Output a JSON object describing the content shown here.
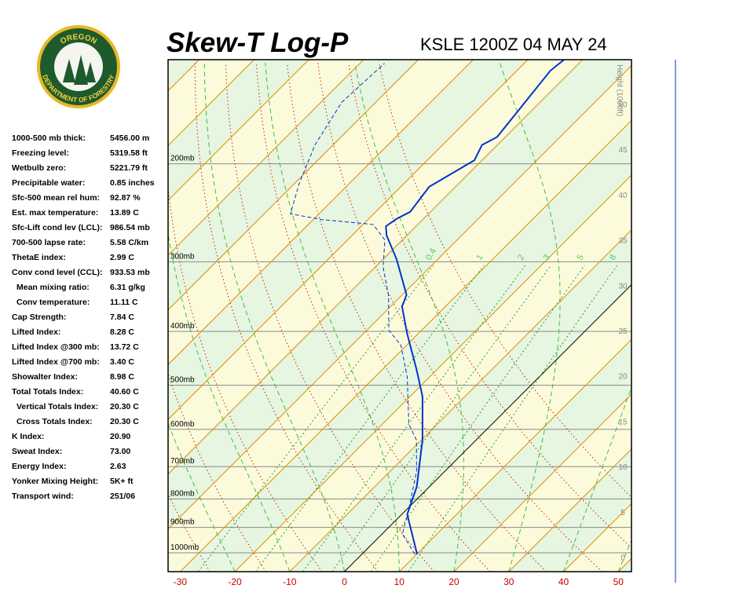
{
  "logo": {
    "top": "OREGON",
    "bottom": "DEPARTMENT OF FORESTRY"
  },
  "indices": {
    "rows": [
      [
        "1000-500 mb thick:",
        "5456.00 m"
      ],
      [
        "Freezing level:",
        "5319.58 ft"
      ],
      [
        "Wetbulb zero:",
        "5221.79 ft"
      ],
      [
        "Precipitable water:",
        "0.85 inches"
      ],
      [
        "Sfc-500 mean rel hum:",
        "92.87 %"
      ],
      [
        "Est. max temperature:",
        "13.89 C"
      ],
      [
        "Sfc-Lift cond lev (LCL):",
        "986.54 mb"
      ],
      [
        "700-500 lapse rate:",
        "5.58 C/km"
      ],
      [
        "ThetaE index:",
        "2.99 C"
      ],
      [
        "Conv cond level (CCL):",
        "933.53 mb"
      ],
      [
        "Mean mixing ratio:",
        "6.31 g/kg"
      ],
      [
        "Conv temperature:",
        "11.11 C"
      ],
      [
        "Cap Strength:",
        "7.84 C"
      ],
      [
        "Lifted Index:",
        "8.28 C"
      ],
      [
        "Lifted Index @300 mb:",
        "13.72 C"
      ],
      [
        "Lifted Index @700 mb:",
        "3.40 C"
      ],
      [
        "Showalter Index:",
        "8.98 C"
      ],
      [
        "Total Totals Index:",
        "40.60 C"
      ],
      [
        "Vertical Totals Index:",
        "20.30 C"
      ],
      [
        "Cross Totals Index:",
        "20.30 C"
      ],
      [
        "K Index:",
        "20.90"
      ],
      [
        "Sweat Index:",
        "73.00"
      ],
      [
        "Energy Index:",
        "2.63"
      ],
      [
        "Yonker Mixing Height:",
        "5K+ ft"
      ],
      [
        "Transport wind:",
        "251/06"
      ]
    ]
  },
  "chart_data": {
    "type": "skewt",
    "title": "Skew-T Log-P",
    "subtitle": "KSLE 1200Z 04 MAY 24",
    "xlim": [
      -32.2,
      52.4
    ],
    "xticks": [
      -30,
      -20,
      -10,
      0,
      10,
      20,
      30,
      40,
      50
    ],
    "plim": [
      1081,
      130
    ],
    "pticks": [
      {
        "value": 1000,
        "label": "1000mb"
      },
      {
        "value": 900,
        "label": "900mb"
      },
      {
        "value": 800,
        "label": "800mb"
      },
      {
        "value": 700,
        "label": "700mb"
      },
      {
        "value": 600,
        "label": "600mb"
      },
      {
        "value": 500,
        "label": "500mb"
      },
      {
        "value": 400,
        "label": "400mb"
      },
      {
        "value": 300,
        "label": "300mb"
      },
      {
        "value": 200,
        "label": "200mb"
      }
    ],
    "height_label": "Height (1000ft)",
    "hlim": [
      -1.6,
      54.9
    ],
    "hticks": [
      0,
      5,
      10,
      15,
      20,
      25,
      30,
      35,
      40,
      45,
      50
    ],
    "mixing_ratios": [
      0.4,
      1,
      2,
      3,
      5,
      8
    ],
    "series": [
      {
        "name": "Temperature",
        "color": "#0033cc",
        "pressure": [
          1006,
          853,
          761,
          627,
          524,
          468,
          404,
          361,
          344,
          297,
          269,
          259,
          251,
          244,
          220,
          197,
          185,
          179,
          136,
          130
        ],
        "values": [
          10.1,
          1.0,
          -2.3,
          -9.8,
          -17.7,
          -23.8,
          -32.0,
          -37.9,
          -39.2,
          -47.5,
          -53.7,
          -55.5,
          -54.9,
          -53.7,
          -54.8,
          -51.4,
          -52.8,
          -51.5,
          -53.9,
          -53.4
        ]
      },
      {
        "name": "Dewpoint",
        "color": "#0033cc",
        "pressure": [
          1006,
          925,
          839,
          713,
          627,
          587,
          483,
          424,
          398,
          344,
          307,
          274,
          257,
          252,
          246,
          218,
          185,
          155,
          132
        ],
        "values": [
          9.7,
          3.7,
          0.5,
          -5.2,
          -10.9,
          -15.2,
          -24.1,
          -31.0,
          -36.0,
          -42.5,
          -48.5,
          -53.2,
          -58.2,
          -68.3,
          -75.2,
          -79.0,
          -83.3,
          -86.2,
          -85.5
        ]
      }
    ]
  }
}
